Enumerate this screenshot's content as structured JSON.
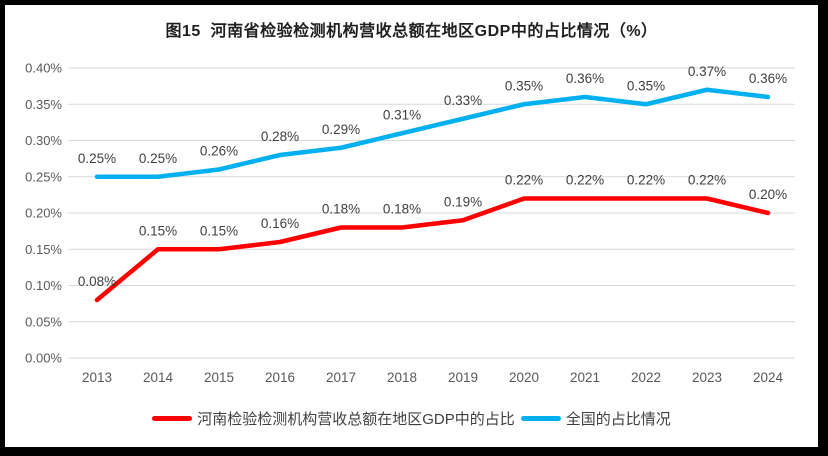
{
  "chart_data": {
    "type": "line",
    "title": "图15  河南省检验检测机构营收总额在地区GDP中的占比情况（%）",
    "categories": [
      "2013",
      "2014",
      "2015",
      "2016",
      "2017",
      "2018",
      "2019",
      "2020",
      "2021",
      "2022",
      "2023",
      "2024"
    ],
    "series": [
      {
        "name": "河南检验检测机构营收总额在地区GDP中的占比",
        "color": "#FF0000",
        "values": [
          0.08,
          0.15,
          0.15,
          0.16,
          0.18,
          0.18,
          0.19,
          0.22,
          0.22,
          0.22,
          0.22,
          0.2
        ],
        "labels": [
          "0.08%",
          "0.15%",
          "0.15%",
          "0.16%",
          "0.18%",
          "0.18%",
          "0.19%",
          "0.22%",
          "0.22%",
          "0.22%",
          "0.22%",
          "0.20%"
        ]
      },
      {
        "name": "全国的占比情况",
        "color": "#00B0F0",
        "values": [
          0.25,
          0.25,
          0.26,
          0.28,
          0.29,
          0.31,
          0.33,
          0.35,
          0.36,
          0.35,
          0.37,
          0.36
        ],
        "labels": [
          "0.25%",
          "0.25%",
          "0.26%",
          "0.28%",
          "0.29%",
          "0.31%",
          "0.33%",
          "0.35%",
          "0.36%",
          "0.35%",
          "0.37%",
          "0.36%"
        ]
      }
    ],
    "xlabel": "",
    "ylabel": "",
    "ylim": [
      0,
      0.4
    ],
    "y_ticks": [
      "0.00%",
      "0.05%",
      "0.10%",
      "0.15%",
      "0.20%",
      "0.25%",
      "0.30%",
      "0.35%",
      "0.40%"
    ],
    "grid": true,
    "data_labels": true,
    "legend_position": "bottom"
  },
  "colors": {
    "grid": "#D9D9D9",
    "axis_text": "#595959",
    "data_label_text": "#3F3F3F",
    "title_text": "#1F1F1F",
    "legend_text": "#404040",
    "frame": "#000000",
    "background": "#FFFFFF"
  }
}
